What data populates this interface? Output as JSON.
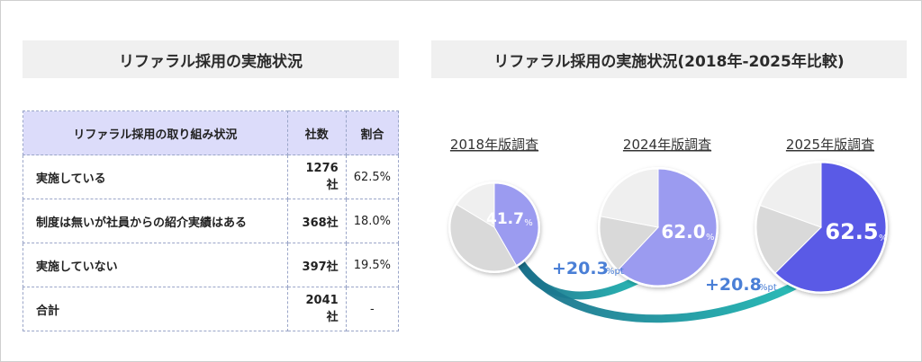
{
  "left": {
    "title": "リファラル採用の実施状況",
    "table": {
      "headers": [
        "リファラル採用の取り組み状況",
        "社数",
        "割合"
      ],
      "rows": [
        [
          "実施している",
          "1276社",
          "62.5%"
        ],
        [
          "制度は無いが社員からの紹介実績はある",
          "368社",
          "18.0%"
        ],
        [
          "実施していない",
          "397社",
          "19.5%"
        ],
        [
          "合計",
          "2041社",
          "-"
        ]
      ]
    }
  },
  "right": {
    "title": "リファラル採用の実施状況(2018年-2025年比較)"
  },
  "chart_data": {
    "type": "pie",
    "title": "リファラル採用の実施状況(2018年-2025年比較)",
    "unit": "%",
    "delta_unit": "%pt",
    "pies": [
      {
        "label": "2018年版調査",
        "highlight": 41.7,
        "highlight_text": "41.7",
        "others": [
          42.0,
          16.3
        ],
        "color": "#9b9bf0"
      },
      {
        "label": "2024年版調査",
        "highlight": 62.0,
        "highlight_text": "62.0",
        "others": [
          16.0,
          22.0
        ],
        "color": "#9b9bf0"
      },
      {
        "label": "2025年版調査",
        "highlight": 62.5,
        "highlight_text": "62.5",
        "others": [
          18.0,
          19.5
        ],
        "color": "#5a5ae6"
      }
    ],
    "deltas": [
      {
        "value": "+20.3",
        "from": "2018年版調査",
        "to": "2024年版調査"
      },
      {
        "value": "+20.8",
        "from": "2018年版調査",
        "to": "2025年版調査"
      }
    ],
    "colors": {
      "others": [
        "#d9d9d9",
        "#efefef"
      ],
      "arrow": "#1fb3b3",
      "delta_text": "#4a7fd6"
    }
  }
}
